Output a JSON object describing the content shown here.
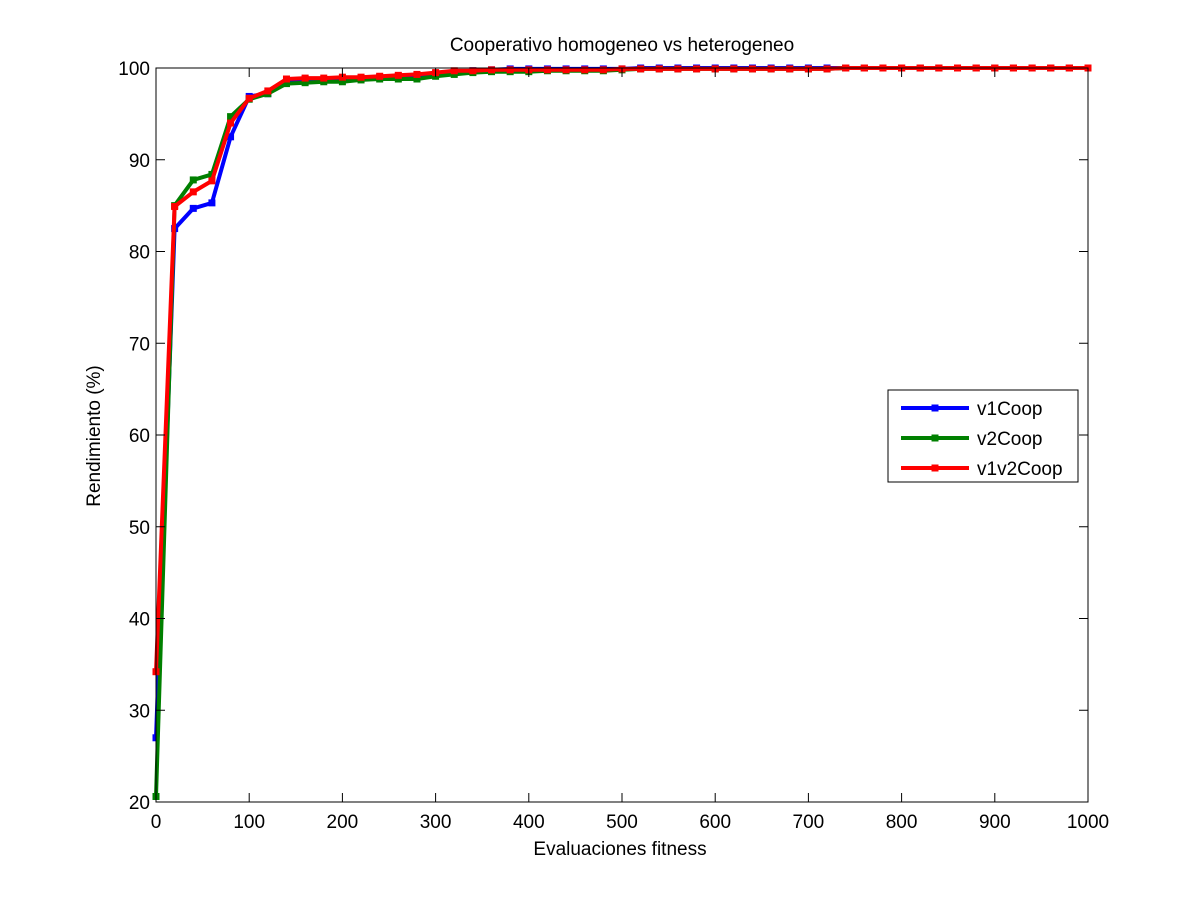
{
  "chart_data": {
    "type": "line",
    "title": "Cooperativo homogeneo vs heterogeneo",
    "xlabel": "Evaluaciones fitness",
    "ylabel": "Rendimiento (%)",
    "xlim": [
      0,
      1000
    ],
    "ylim": [
      20,
      100
    ],
    "xticks": [
      0,
      100,
      200,
      300,
      400,
      500,
      600,
      700,
      800,
      900,
      1000
    ],
    "yticks": [
      20,
      30,
      40,
      50,
      60,
      70,
      80,
      90,
      100
    ],
    "grid": false,
    "legend_position": "right",
    "x": [
      0,
      20,
      40,
      60,
      80,
      100,
      120,
      140,
      160,
      180,
      200,
      220,
      240,
      260,
      280,
      300,
      320,
      340,
      360,
      380,
      400,
      420,
      440,
      460,
      480,
      500,
      520,
      540,
      560,
      580,
      600,
      620,
      640,
      660,
      680,
      700,
      720,
      740,
      760,
      780,
      800,
      820,
      840,
      860,
      880,
      900,
      920,
      940,
      960,
      980,
      1000
    ],
    "series": [
      {
        "name": "v1Coop",
        "color": "#0000ff",
        "values": [
          27.0,
          82.5,
          84.7,
          85.3,
          92.5,
          96.9,
          97.2,
          98.6,
          98.8,
          98.7,
          98.8,
          98.9,
          99.0,
          99.1,
          99.2,
          99.4,
          99.6,
          99.7,
          99.8,
          99.9,
          99.9,
          99.9,
          99.9,
          99.9,
          99.9,
          99.9,
          100,
          100,
          100,
          100,
          100,
          100,
          100,
          100,
          100,
          100,
          100,
          100,
          100,
          100,
          100,
          100,
          100,
          100,
          100,
          100,
          100,
          100,
          100,
          100,
          100
        ]
      },
      {
        "name": "v2Coop",
        "color": "#008000",
        "values": [
          20.6,
          85.0,
          87.8,
          88.4,
          94.7,
          96.6,
          97.2,
          98.3,
          98.4,
          98.5,
          98.5,
          98.7,
          98.8,
          98.8,
          98.8,
          99.1,
          99.3,
          99.5,
          99.6,
          99.6,
          99.6,
          99.7,
          99.7,
          99.7,
          99.7,
          99.8,
          99.9,
          99.9,
          99.9,
          99.9,
          99.9,
          99.9,
          99.9,
          99.9,
          99.9,
          99.9,
          99.9,
          100,
          100,
          100,
          100,
          100,
          100,
          100,
          100,
          100,
          100,
          100,
          100,
          100,
          100
        ]
      },
      {
        "name": "v1v2Coop",
        "color": "#ff0000",
        "values": [
          34.2,
          84.9,
          86.5,
          87.7,
          94.0,
          96.7,
          97.5,
          98.8,
          98.9,
          98.9,
          99.0,
          99.0,
          99.1,
          99.2,
          99.3,
          99.5,
          99.7,
          99.7,
          99.8,
          99.8,
          99.8,
          99.8,
          99.8,
          99.8,
          99.8,
          99.9,
          99.9,
          99.9,
          99.9,
          99.9,
          99.9,
          99.9,
          99.9,
          99.9,
          99.9,
          99.9,
          99.9,
          100,
          100,
          100,
          100,
          100,
          100,
          100,
          100,
          100,
          100,
          100,
          100,
          100,
          100
        ]
      }
    ]
  }
}
